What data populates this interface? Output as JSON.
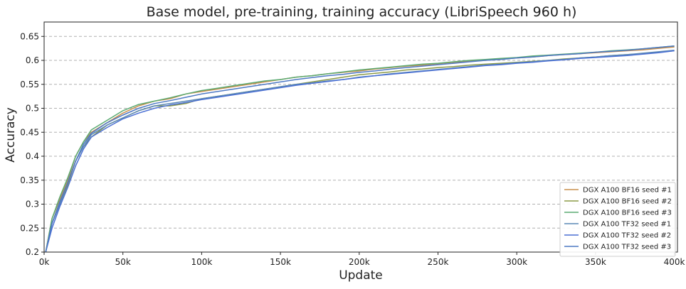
{
  "chart_data": {
    "type": "line",
    "title": "Base model, pre-training, training accuracy (LibriSpeech 960 h)",
    "xlabel": "Update",
    "ylabel": "Accuracy",
    "xlim": [
      0,
      402000
    ],
    "ylim": [
      0.2,
      0.68
    ],
    "x_ticks": [
      0,
      50000,
      100000,
      150000,
      200000,
      250000,
      300000,
      350000,
      400000
    ],
    "x_tick_labels": [
      "0k",
      "50k",
      "100k",
      "150k",
      "200k",
      "250k",
      "300k",
      "350k",
      "400k"
    ],
    "y_ticks": [
      0.2,
      0.25,
      0.3,
      0.35,
      0.4,
      0.45,
      0.5,
      0.55,
      0.6,
      0.65
    ],
    "y_tick_labels": [
      "0.2",
      "0.25",
      "0.3",
      "0.35",
      "0.4",
      "0.45",
      "0.5",
      "0.55",
      "0.6",
      "0.65"
    ],
    "grid": "horizontal dashed",
    "legend_position": "bottom-right",
    "x": [
      1000,
      5000,
      10000,
      15000,
      20000,
      25000,
      30000,
      40000,
      50000,
      60000,
      70000,
      80000,
      90000,
      100000,
      110000,
      120000,
      130000,
      140000,
      150000,
      160000,
      170000,
      180000,
      190000,
      200000,
      210000,
      220000,
      230000,
      240000,
      250000,
      260000,
      270000,
      280000,
      290000,
      300000,
      310000,
      320000,
      330000,
      340000,
      350000,
      360000,
      370000,
      380000,
      390000,
      400000
    ],
    "series": [
      {
        "name": "DGX A100 BF16 seed #1",
        "color": "#c98f4e",
        "values": [
          0.2,
          0.27,
          0.31,
          0.35,
          0.4,
          0.43,
          0.45,
          0.47,
          0.49,
          0.505,
          0.515,
          0.52,
          0.53,
          0.535,
          0.54,
          0.545,
          0.55,
          0.555,
          0.56,
          0.565,
          0.568,
          0.572,
          0.575,
          0.578,
          0.582,
          0.585,
          0.588,
          0.59,
          0.593,
          0.596,
          0.598,
          0.6,
          0.603,
          0.605,
          0.607,
          0.61,
          0.612,
          0.614,
          0.616,
          0.618,
          0.62,
          0.622,
          0.625,
          0.628
        ]
      },
      {
        "name": "DGX A100 BF16 seed #2",
        "color": "#8b9a47",
        "values": [
          0.2,
          0.26,
          0.3,
          0.34,
          0.39,
          0.42,
          0.44,
          0.465,
          0.48,
          0.495,
          0.505,
          0.505,
          0.51,
          0.52,
          0.525,
          0.53,
          0.535,
          0.54,
          0.545,
          0.55,
          0.555,
          0.56,
          0.565,
          0.57,
          0.573,
          0.576,
          0.58,
          0.582,
          0.585,
          0.587,
          0.59,
          0.592,
          0.594,
          0.596,
          0.598,
          0.6,
          0.603,
          0.605,
          0.607,
          0.61,
          0.612,
          0.614,
          0.617,
          0.62
        ]
      },
      {
        "name": "DGX A100 BF16 seed #3",
        "color": "#5aaa72",
        "values": [
          0.2,
          0.27,
          0.315,
          0.355,
          0.4,
          0.43,
          0.455,
          0.475,
          0.495,
          0.508,
          0.515,
          0.522,
          0.53,
          0.537,
          0.542,
          0.547,
          0.552,
          0.557,
          0.56,
          0.565,
          0.568,
          0.572,
          0.576,
          0.58,
          0.583,
          0.586,
          0.589,
          0.592,
          0.594,
          0.597,
          0.6,
          0.602,
          0.604,
          0.606,
          0.609,
          0.611,
          0.613,
          0.615,
          0.617,
          0.62,
          0.622,
          0.624,
          0.627,
          0.63
        ]
      },
      {
        "name": "DGX A100 TF32 seed #1",
        "color": "#5a88b5",
        "values": [
          0.2,
          0.26,
          0.3,
          0.345,
          0.39,
          0.42,
          0.445,
          0.465,
          0.48,
          0.495,
          0.505,
          0.51,
          0.515,
          0.52,
          0.525,
          0.53,
          0.535,
          0.54,
          0.545,
          0.55,
          0.553,
          0.557,
          0.56,
          0.565,
          0.568,
          0.572,
          0.575,
          0.578,
          0.581,
          0.584,
          0.587,
          0.59,
          0.592,
          0.595,
          0.597,
          0.6,
          0.602,
          0.605,
          0.607,
          0.61,
          0.612,
          0.615,
          0.618,
          0.621
        ]
      },
      {
        "name": "DGX A100 TF32 seed #2",
        "color": "#4a6fd4",
        "values": [
          0.2,
          0.25,
          0.295,
          0.335,
          0.38,
          0.415,
          0.44,
          0.46,
          0.478,
          0.49,
          0.5,
          0.507,
          0.512,
          0.518,
          0.523,
          0.528,
          0.533,
          0.538,
          0.543,
          0.548,
          0.552,
          0.556,
          0.56,
          0.564,
          0.568,
          0.571,
          0.574,
          0.577,
          0.58,
          0.583,
          0.586,
          0.589,
          0.591,
          0.594,
          0.596,
          0.599,
          0.601,
          0.604,
          0.606,
          0.608,
          0.61,
          0.613,
          0.616,
          0.62
        ]
      },
      {
        "name": "DGX A100 TF32 seed #3",
        "color": "#4d78c4",
        "values": [
          0.2,
          0.26,
          0.305,
          0.345,
          0.39,
          0.425,
          0.448,
          0.47,
          0.486,
          0.5,
          0.51,
          0.516,
          0.523,
          0.53,
          0.535,
          0.54,
          0.545,
          0.55,
          0.555,
          0.56,
          0.564,
          0.568,
          0.571,
          0.575,
          0.578,
          0.582,
          0.585,
          0.588,
          0.591,
          0.594,
          0.597,
          0.6,
          0.602,
          0.605,
          0.607,
          0.61,
          0.612,
          0.614,
          0.617,
          0.619,
          0.621,
          0.624,
          0.627,
          0.63
        ]
      }
    ]
  }
}
